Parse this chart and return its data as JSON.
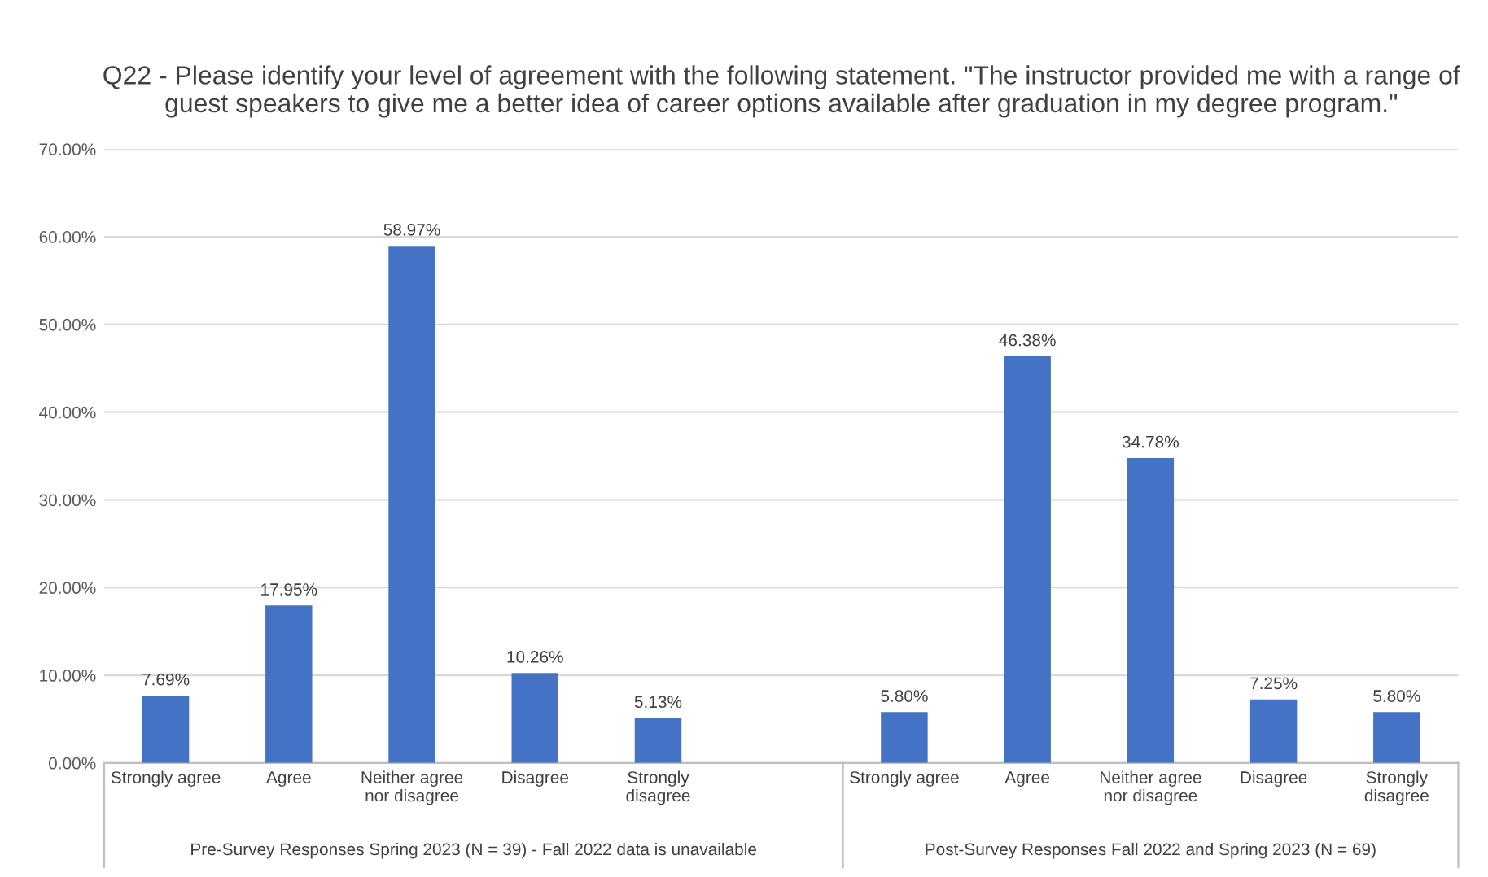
{
  "chart_data": {
    "type": "bar",
    "title": "Q22 - Please identify your level of agreement with the following statement. \"The instructor provided me with a range of guest speakers to give me a better idea of career options available after graduation in my degree program.\"",
    "categories": [
      "Strongly agree",
      "Agree",
      "Neither agree\nnor disagree",
      "Disagree",
      "Strongly\ndisagree",
      null,
      "Strongly agree",
      "Agree",
      "Neither agree\nnor disagree",
      "Disagree",
      "Strongly\ndisagree"
    ],
    "values": [
      7.69,
      17.95,
      58.97,
      10.26,
      5.13,
      null,
      5.8,
      46.38,
      34.78,
      7.25,
      5.8
    ],
    "value_labels": [
      "7.69%",
      "17.95%",
      "58.97%",
      "10.26%",
      "5.13%",
      null,
      "5.80%",
      "46.38%",
      "34.78%",
      "7.25%",
      "5.80%"
    ],
    "color": "#4472c4",
    "ylim": [
      0,
      70
    ],
    "yticks": [
      {
        "value": 0,
        "label": "0.00%"
      },
      {
        "value": 10,
        "label": "10.00%"
      },
      {
        "value": 20,
        "label": "20.00%"
      },
      {
        "value": 30,
        "label": "30.00%"
      },
      {
        "value": 40,
        "label": "40.00%"
      },
      {
        "value": 50,
        "label": "50.00%"
      },
      {
        "value": 60,
        "label": "60.00%"
      },
      {
        "value": 70,
        "label": "70.00%"
      }
    ],
    "grid": "y",
    "annotations": [
      "Pre-Survey Responses Spring 2023 (N = 39) - Fall 2022 data is unavailable",
      "Post-Survey Responses Fall 2022 and Spring 2023 (N = 69)"
    ]
  }
}
